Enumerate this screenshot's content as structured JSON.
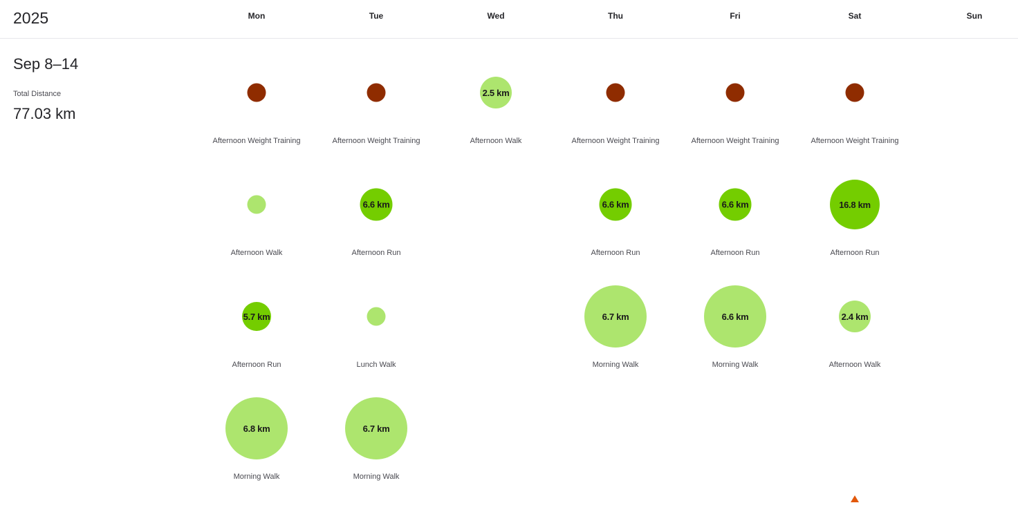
{
  "header": {
    "year": "2025",
    "days": [
      "Mon",
      "Tue",
      "Wed",
      "Thu",
      "Fri",
      "Sat",
      "Sun"
    ]
  },
  "week": {
    "range": "Sep 8–14",
    "stat_label": "Total Distance",
    "stat_value": "77.03 km"
  },
  "colors": {
    "weight_training": "#8f2c00",
    "walk": "#ade56e",
    "run": "#74cd00",
    "accent": "#e2580b"
  },
  "activities": [
    {
      "day": 0,
      "row": 0,
      "name": "Afternoon Weight Training",
      "kind": "weight_training",
      "label": ""
    },
    {
      "day": 1,
      "row": 0,
      "name": "Afternoon Weight Training",
      "kind": "weight_training",
      "label": ""
    },
    {
      "day": 2,
      "row": 0,
      "name": "Afternoon Walk",
      "kind": "walk",
      "label": "2.5 km",
      "km": 2.5
    },
    {
      "day": 3,
      "row": 0,
      "name": "Afternoon Weight Training",
      "kind": "weight_training",
      "label": ""
    },
    {
      "day": 4,
      "row": 0,
      "name": "Afternoon Weight Training",
      "kind": "weight_training",
      "label": ""
    },
    {
      "day": 5,
      "row": 0,
      "name": "Afternoon Weight Training",
      "kind": "weight_training",
      "label": ""
    },
    {
      "day": 0,
      "row": 1,
      "name": "Afternoon Walk",
      "kind": "walk",
      "label": "",
      "km": 0.9
    },
    {
      "day": 1,
      "row": 1,
      "name": "Afternoon Run",
      "kind": "run",
      "label": "6.6 km",
      "km": 6.6
    },
    {
      "day": 3,
      "row": 1,
      "name": "Afternoon Run",
      "kind": "run",
      "label": "6.6 km",
      "km": 6.6
    },
    {
      "day": 4,
      "row": 1,
      "name": "Afternoon Run",
      "kind": "run",
      "label": "6.6 km",
      "km": 6.6
    },
    {
      "day": 5,
      "row": 1,
      "name": "Afternoon Run",
      "kind": "run",
      "label": "16.8 km",
      "km": 16.8
    },
    {
      "day": 0,
      "row": 2,
      "name": "Afternoon Run",
      "kind": "run",
      "label": "5.7 km",
      "km": 5.7
    },
    {
      "day": 1,
      "row": 2,
      "name": "Lunch Walk",
      "kind": "walk",
      "label": "",
      "km": 0.9
    },
    {
      "day": 3,
      "row": 2,
      "name": "Morning Walk",
      "kind": "walk",
      "label": "6.7 km",
      "km": 6.7
    },
    {
      "day": 4,
      "row": 2,
      "name": "Morning Walk",
      "kind": "walk",
      "label": "6.6 km",
      "km": 6.6
    },
    {
      "day": 5,
      "row": 2,
      "name": "Afternoon Walk",
      "kind": "walk",
      "label": "2.4 km",
      "km": 2.4
    },
    {
      "day": 0,
      "row": 3,
      "name": "Morning Walk",
      "kind": "walk",
      "label": "6.8 km",
      "km": 6.8
    },
    {
      "day": 1,
      "row": 3,
      "name": "Morning Walk",
      "kind": "walk",
      "label": "6.7 km",
      "km": 6.7
    }
  ]
}
